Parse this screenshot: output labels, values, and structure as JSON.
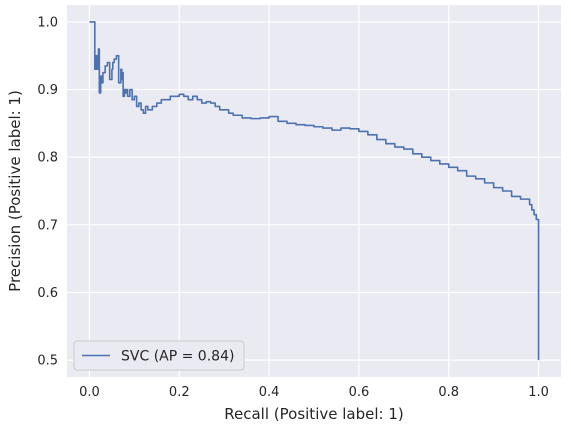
{
  "chart_data": {
    "type": "line",
    "title": "",
    "xlabel": "Recall (Positive label: 1)",
    "ylabel": "Precision (Positive label: 1)",
    "xlim": [
      -0.05,
      1.05
    ],
    "ylim": [
      0.475,
      1.025
    ],
    "x_ticks": [
      0.0,
      0.2,
      0.4,
      0.6,
      0.8,
      1.0
    ],
    "x_tick_labels": [
      "0.0",
      "0.2",
      "0.4",
      "0.6",
      "0.8",
      "1.0"
    ],
    "y_ticks": [
      0.5,
      0.6,
      0.7,
      0.8,
      0.9,
      1.0
    ],
    "y_tick_labels": [
      "0.5",
      "0.6",
      "0.7",
      "0.8",
      "0.9",
      "1.0"
    ],
    "grid": true,
    "legend_position": "lower-left",
    "colors": {
      "background": "#eaeaf2",
      "grid": "#ffffff",
      "line": "#4c72b0"
    },
    "series": [
      {
        "name": "SVC (AP = 0.84)",
        "x": [
          0.0,
          0.005,
          0.01,
          0.012,
          0.012,
          0.015,
          0.018,
          0.02,
          0.022,
          0.025,
          0.025,
          0.027,
          0.03,
          0.035,
          0.04,
          0.045,
          0.05,
          0.052,
          0.055,
          0.06,
          0.065,
          0.07,
          0.072,
          0.075,
          0.075,
          0.078,
          0.08,
          0.082,
          0.085,
          0.09,
          0.095,
          0.1,
          0.105,
          0.11,
          0.115,
          0.12,
          0.125,
          0.13,
          0.14,
          0.15,
          0.16,
          0.17,
          0.18,
          0.19,
          0.2,
          0.21,
          0.22,
          0.23,
          0.24,
          0.25,
          0.26,
          0.27,
          0.28,
          0.29,
          0.3,
          0.31,
          0.32,
          0.34,
          0.36,
          0.38,
          0.4,
          0.42,
          0.44,
          0.46,
          0.48,
          0.5,
          0.52,
          0.54,
          0.56,
          0.58,
          0.6,
          0.62,
          0.64,
          0.66,
          0.68,
          0.7,
          0.72,
          0.74,
          0.76,
          0.78,
          0.8,
          0.82,
          0.84,
          0.86,
          0.88,
          0.9,
          0.92,
          0.94,
          0.96,
          0.98,
          0.985,
          0.99,
          0.995,
          1.0,
          1.0
        ],
        "y": [
          1.0,
          1.0,
          1.0,
          1.0,
          0.93,
          0.95,
          0.93,
          0.96,
          0.895,
          0.91,
          0.92,
          0.91,
          0.925,
          0.935,
          0.94,
          0.915,
          0.93,
          0.94,
          0.945,
          0.95,
          0.91,
          0.93,
          0.915,
          0.925,
          0.89,
          0.9,
          0.895,
          0.9,
          0.89,
          0.9,
          0.885,
          0.89,
          0.875,
          0.88,
          0.87,
          0.865,
          0.875,
          0.87,
          0.875,
          0.88,
          0.885,
          0.885,
          0.89,
          0.89,
          0.893,
          0.89,
          0.885,
          0.89,
          0.885,
          0.88,
          0.882,
          0.88,
          0.875,
          0.87,
          0.87,
          0.865,
          0.862,
          0.858,
          0.857,
          0.858,
          0.86,
          0.853,
          0.85,
          0.848,
          0.847,
          0.845,
          0.843,
          0.84,
          0.843,
          0.842,
          0.838,
          0.833,
          0.826,
          0.82,
          0.815,
          0.812,
          0.805,
          0.8,
          0.795,
          0.79,
          0.785,
          0.78,
          0.772,
          0.768,
          0.762,
          0.755,
          0.75,
          0.742,
          0.738,
          0.73,
          0.722,
          0.715,
          0.708,
          0.7,
          0.5
        ]
      }
    ]
  }
}
